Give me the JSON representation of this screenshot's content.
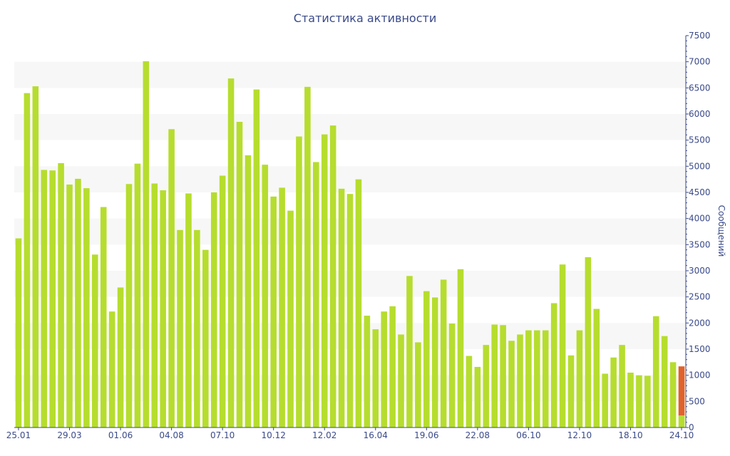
{
  "chart_data": {
    "type": "bar",
    "title": "Статистика активности",
    "ylabel": "Сообщений",
    "xlabel": "",
    "ylim": [
      0,
      7500
    ],
    "yticks": [
      0,
      500,
      1000,
      1500,
      2000,
      2500,
      3000,
      3500,
      4000,
      4500,
      5000,
      5500,
      6000,
      6500,
      7000,
      7500
    ],
    "grid_bands": true,
    "xtick_labels": [
      {
        "index": 0,
        "label": "25.01"
      },
      {
        "index": 6,
        "label": "29.03"
      },
      {
        "index": 12,
        "label": "01.06"
      },
      {
        "index": 18,
        "label": "04.08"
      },
      {
        "index": 24,
        "label": "07.10"
      },
      {
        "index": 30,
        "label": "10.12"
      },
      {
        "index": 36,
        "label": "12.02"
      },
      {
        "index": 42,
        "label": "16.04"
      },
      {
        "index": 48,
        "label": "19.06"
      },
      {
        "index": 54,
        "label": "22.08"
      },
      {
        "index": 60,
        "label": "06.10"
      },
      {
        "index": 66,
        "label": "12.10"
      },
      {
        "index": 72,
        "label": "18.10"
      },
      {
        "index": 78,
        "label": "24.10"
      }
    ],
    "values": [
      3620,
      6400,
      6530,
      4930,
      4920,
      5060,
      4650,
      4760,
      4580,
      3310,
      4220,
      2220,
      2680,
      4660,
      5050,
      7010,
      4670,
      4540,
      5710,
      3780,
      4480,
      3780,
      3400,
      4500,
      4820,
      6680,
      5850,
      5210,
      6470,
      5030,
      4420,
      4590,
      4150,
      5570,
      6520,
      5080,
      5610,
      5780,
      4570,
      4470,
      4750,
      2140,
      1880,
      2220,
      2320,
      1780,
      2900,
      1630,
      2610,
      2490,
      2830,
      1990,
      3030,
      1370,
      1160,
      1580,
      1970,
      1960,
      1660,
      1780,
      1860,
      1860,
      1860,
      2380,
      3120,
      1380,
      1860,
      3260,
      2270,
      1030,
      1340,
      1580,
      1050,
      1000,
      990,
      2130,
      1750,
      1250,
      1170
    ],
    "highlight": {
      "index": 78,
      "top_value": 1170,
      "base_value": 230,
      "color": "#e0622a"
    },
    "colors": {
      "bar": "#b6dd2e",
      "highlight": "#e0622a",
      "axis": "#3a4a8a",
      "band": "#f7f7f7"
    }
  }
}
